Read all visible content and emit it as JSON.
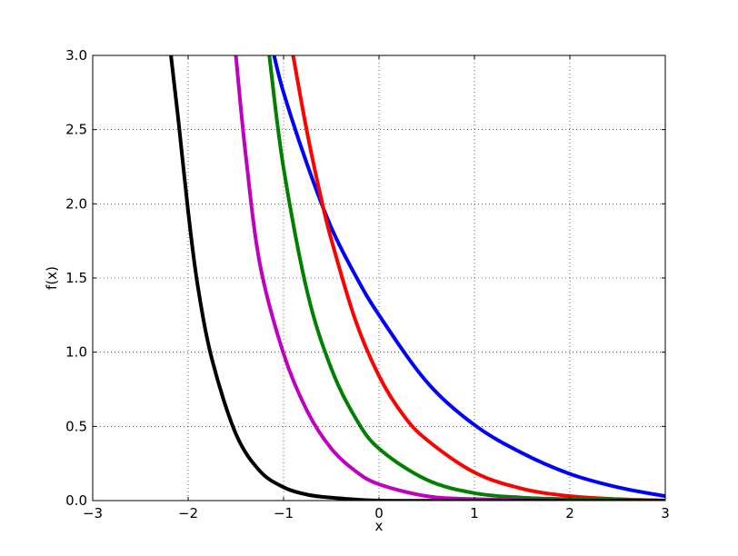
{
  "chart_data": {
    "type": "line",
    "title": "",
    "xlabel": "x",
    "ylabel": "f(x)",
    "xlim": [
      -3,
      3
    ],
    "ylim": [
      0,
      3.0
    ],
    "xticks": [
      -3,
      -2,
      -1,
      0,
      1,
      2,
      3
    ],
    "xtick_labels": [
      "−3",
      "−2",
      "−1",
      "0",
      "1",
      "2",
      "3"
    ],
    "yticks": [
      0,
      0.5,
      1.0,
      1.5,
      2.0,
      2.5,
      3.0
    ],
    "ytick_labels": [
      "0.0",
      "0.5",
      "1.0",
      "1.5",
      "2.0",
      "2.5",
      "3.0"
    ],
    "grid": true,
    "series": [
      {
        "color": "#0000ff",
        "x": [
          -1.1,
          -1.0,
          -0.75,
          -0.5,
          -0.25,
          0,
          0.5,
          1.0,
          1.5,
          2.0,
          2.5,
          3.0
        ],
        "y": [
          3.0,
          2.75,
          2.26,
          1.84,
          1.52,
          1.25,
          0.8,
          0.51,
          0.32,
          0.18,
          0.09,
          0.03
        ]
      },
      {
        "color": "#ff0000",
        "x": [
          -0.9,
          -0.75,
          -0.6,
          -0.5,
          -0.25,
          0,
          0.25,
          0.5,
          1.0,
          1.5,
          2.0,
          2.5,
          3.0
        ],
        "y": [
          3.0,
          2.47,
          2.02,
          1.76,
          1.22,
          0.84,
          0.58,
          0.41,
          0.19,
          0.08,
          0.03,
          0.01,
          0.0
        ]
      },
      {
        "color": "#008000",
        "x": [
          -1.15,
          -1.0,
          -0.75,
          -0.5,
          -0.25,
          0,
          0.5,
          1.0,
          1.5,
          2.0,
          3.0
        ],
        "y": [
          3.0,
          2.24,
          1.4,
          0.89,
          0.56,
          0.35,
          0.14,
          0.05,
          0.02,
          0.01,
          0.0
        ]
      },
      {
        "color": "#bf00bf",
        "x": [
          -1.5,
          -1.4,
          -1.25,
          -1.0,
          -0.75,
          -0.5,
          -0.25,
          0,
          0.5,
          1.0,
          2.0,
          3.0
        ],
        "y": [
          3.0,
          2.35,
          1.6,
          0.99,
          0.6,
          0.35,
          0.2,
          0.11,
          0.03,
          0.01,
          0.0,
          0.0
        ]
      },
      {
        "color": "#000000",
        "x": [
          -2.18,
          -2.1,
          -2.0,
          -1.9,
          -1.75,
          -1.5,
          -1.25,
          -1.0,
          -0.75,
          -0.5,
          0,
          1.0,
          2.0,
          3.0
        ],
        "y": [
          3.0,
          2.55,
          1.95,
          1.45,
          0.95,
          0.45,
          0.2,
          0.09,
          0.04,
          0.02,
          0.0,
          0.0,
          0.0,
          0.0
        ]
      }
    ]
  }
}
